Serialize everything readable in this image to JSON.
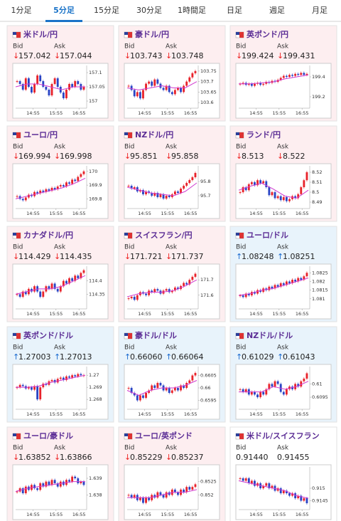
{
  "tabs": [
    "1分足",
    "5分足",
    "15分足",
    "30分足",
    "1時間足",
    "日足",
    "週足",
    "月足"
  ],
  "active_tab": 1,
  "time_labels": [
    "14:55",
    "15:55",
    "16:55"
  ],
  "candle_up_color": "#e8232b",
  "candle_down_color": "#2a44c4",
  "ma_color": "#d03ad0",
  "cards": [
    {
      "pair": "米ドル/円",
      "background": "#fdeef0",
      "bid_label": "Bid",
      "ask_label": "Ask",
      "bid_arrow": "↓",
      "bid": "157.042",
      "ask_arrow": "↓",
      "ask": "157.044",
      "ylim": [
        156.98,
        157.12
      ],
      "yticks": [
        157.1,
        157.05,
        157
      ],
      "closes": [
        157.07,
        157.06,
        157.04,
        157.08,
        157.05,
        157.03,
        157.06,
        157.09,
        157.07,
        157.05,
        157.04,
        157.02,
        157.06,
        157.08,
        157.05,
        157.03,
        157.01,
        157.04,
        157.06,
        157.05,
        157.07,
        157.06,
        157.04,
        157.05
      ],
      "ma": [
        157.05,
        157.06,
        157.06,
        157.05,
        157.04,
        157.05,
        157.05
      ]
    },
    {
      "pair": "豪ドル/円",
      "background": "#fdeef0",
      "bid_label": "Bid",
      "ask_label": "Ask",
      "bid_arrow": "↓",
      "bid": "103.743",
      "ask_arrow": "↓",
      "ask": "103.748",
      "ylim": [
        103.58,
        103.77
      ],
      "yticks": [
        103.75,
        103.7,
        103.65,
        103.6
      ],
      "closes": [
        103.68,
        103.66,
        103.63,
        103.65,
        103.62,
        103.66,
        103.69,
        103.7,
        103.68,
        103.71,
        103.69,
        103.67,
        103.66,
        103.68,
        103.65,
        103.64,
        103.66,
        103.67,
        103.65,
        103.68,
        103.7,
        103.72,
        103.74,
        103.75
      ],
      "ma": [
        103.67,
        103.66,
        103.67,
        103.68,
        103.67,
        103.67,
        103.7
      ]
    },
    {
      "pair": "英ポンド/円",
      "background": "#fdeef0",
      "bid_label": "Bid",
      "ask_label": "Ask",
      "bid_arrow": "↓",
      "bid": "199.424",
      "ask_arrow": "↓",
      "ask": "199.431",
      "ylim": [
        199.1,
        199.5
      ],
      "yticks": [
        199.4,
        199.2
      ],
      "closes": [
        199.33,
        199.34,
        199.32,
        199.33,
        199.31,
        199.33,
        199.34,
        199.32,
        199.33,
        199.35,
        199.34,
        199.36,
        199.35,
        199.37,
        199.39,
        199.41,
        199.4,
        199.42,
        199.41,
        199.43,
        199.42,
        199.44,
        199.42,
        199.43
      ],
      "ma": [
        199.33,
        199.33,
        199.34,
        199.35,
        199.38,
        199.4,
        199.42
      ]
    },
    {
      "pair": "ユーロ/円",
      "background": "#fdeef0",
      "bid_label": "Bid",
      "ask_label": "Ask",
      "bid_arrow": "↓",
      "bid": "169.994",
      "ask_arrow": "↓",
      "ask": "169.998",
      "ylim": [
        169.74,
        170.03
      ],
      "yticks": [
        170,
        169.9,
        169.8
      ],
      "closes": [
        169.82,
        169.8,
        169.79,
        169.81,
        169.83,
        169.82,
        169.85,
        169.84,
        169.86,
        169.85,
        169.87,
        169.86,
        169.88,
        169.87,
        169.89,
        169.9,
        169.89,
        169.92,
        169.91,
        169.94,
        169.93,
        169.96,
        169.98,
        170
      ],
      "ma": [
        169.8,
        169.82,
        169.84,
        169.86,
        169.88,
        169.91,
        169.95
      ]
    },
    {
      "pair": "NZドル/円",
      "background": "#fdeef0",
      "bid_label": "Bid",
      "ask_label": "Ask",
      "bid_arrow": "↓",
      "bid": "95.851",
      "ask_arrow": "↓",
      "ask": "95.858",
      "ylim": [
        95.62,
        95.9
      ],
      "yticks": [
        95.8,
        95.7
      ],
      "closes": [
        95.77,
        95.75,
        95.76,
        95.73,
        95.74,
        95.71,
        95.73,
        95.72,
        95.7,
        95.72,
        95.69,
        95.71,
        95.68,
        95.7,
        95.69,
        95.71,
        95.73,
        95.72,
        95.75,
        95.77,
        95.79,
        95.81,
        95.83,
        95.86
      ],
      "ma": [
        95.76,
        95.74,
        95.72,
        95.71,
        95.7,
        95.73,
        95.79
      ]
    },
    {
      "pair": "ランド/円",
      "background": "#fdeef0",
      "bid_label": "Bid",
      "ask_label": "Ask",
      "bid_arrow": "↓",
      "bid": "8.513",
      "ask_arrow": "↓",
      "ask": "8.522",
      "ylim": [
        8.485,
        8.525
      ],
      "yticks": [
        8.52,
        8.51,
        8.5,
        8.49
      ],
      "closes": [
        8.5,
        8.505,
        8.502,
        8.508,
        8.51,
        8.507,
        8.512,
        8.509,
        8.511,
        8.505,
        8.497,
        8.5,
        8.494,
        8.496,
        8.492,
        8.495,
        8.491,
        8.493,
        8.496,
        8.494,
        8.498,
        8.505,
        8.512,
        8.52
      ],
      "ma": [
        8.502,
        8.506,
        8.509,
        8.503,
        8.496,
        8.494,
        8.502
      ]
    },
    {
      "pair": "カナダドル/円",
      "background": "#fdeef0",
      "bid_label": "Bid",
      "ask_label": "Ask",
      "bid_arrow": "↓",
      "bid": "114.429",
      "ask_arrow": "↓",
      "ask": "114.435",
      "ylim": [
        114.3,
        114.45
      ],
      "yticks": [
        114.4,
        114.35
      ],
      "closes": [
        114.35,
        114.34,
        114.36,
        114.35,
        114.37,
        114.36,
        114.38,
        114.36,
        114.34,
        114.36,
        114.38,
        114.37,
        114.39,
        114.37,
        114.36,
        114.38,
        114.4,
        114.39,
        114.41,
        114.4,
        114.42,
        114.41,
        114.43,
        114.44
      ],
      "ma": [
        114.35,
        114.36,
        114.37,
        114.37,
        114.38,
        114.4,
        114.42
      ]
    },
    {
      "pair": "スイスフラン/円",
      "background": "#fdeef0",
      "bid_label": "Bid",
      "ask_label": "Ask",
      "bid_arrow": "↓",
      "bid": "171.721",
      "ask_arrow": "↓",
      "ask": "171.737",
      "ylim": [
        171.52,
        171.78
      ],
      "yticks": [
        171.7,
        171.6
      ],
      "closes": [
        171.58,
        171.59,
        171.57,
        171.6,
        171.62,
        171.61,
        171.6,
        171.63,
        171.62,
        171.64,
        171.63,
        171.61,
        171.63,
        171.64,
        171.62,
        171.63,
        171.65,
        171.64,
        171.66,
        171.68,
        171.67,
        171.7,
        171.72,
        171.74
      ],
      "ma": [
        171.59,
        171.61,
        171.62,
        171.62,
        171.63,
        171.66,
        171.7
      ]
    },
    {
      "pair": "ユーロ/ドル",
      "background": "#e8f3fb",
      "bid_label": "Bid",
      "ask_label": "Ask",
      "bid_arrow": "↑",
      "bid": "1.08248",
      "ask_arrow": "↑",
      "ask": "1.08251",
      "ylim": [
        1.0805,
        1.0828
      ],
      "yticks": [
        1.0825,
        1.082,
        1.0815,
        1.081
      ],
      "closes": [
        1.0812,
        1.0811,
        1.0813,
        1.0812,
        1.0814,
        1.0813,
        1.0815,
        1.0814,
        1.0816,
        1.0815,
        1.0817,
        1.0816,
        1.0818,
        1.0817,
        1.0819,
        1.0818,
        1.082,
        1.0819,
        1.0821,
        1.082,
        1.0822,
        1.0821,
        1.0823,
        1.0825
      ],
      "ma": [
        1.0812,
        1.0813,
        1.0815,
        1.0816,
        1.0818,
        1.082,
        1.0822
      ]
    },
    {
      "pair": "英ポンド/ドル",
      "background": "#e8f3fb",
      "bid_label": "Bid",
      "ask_label": "Ask",
      "bid_arrow": "↑",
      "bid": "1.27003",
      "ask_arrow": "↑",
      "ask": "1.27013",
      "ylim": [
        1.2673,
        1.2706
      ],
      "yticks": [
        1.27,
        1.269,
        1.268
      ],
      "closes": [
        1.269,
        1.2692,
        1.2691,
        1.2689,
        1.269,
        1.2688,
        1.2691,
        1.268,
        1.269,
        1.2693,
        1.2692,
        1.2695,
        1.2696,
        1.2694,
        1.2697,
        1.2698,
        1.2696,
        1.2699,
        1.2698,
        1.27,
        1.2699,
        1.2701,
        1.27,
        1.27
      ],
      "ma": [
        1.269,
        1.269,
        1.2691,
        1.2694,
        1.2696,
        1.2698,
        1.27
      ]
    },
    {
      "pair": "豪ドル/ドル",
      "background": "#e8f3fb",
      "bid_label": "Bid",
      "ask_label": "Ask",
      "bid_arrow": "↑",
      "bid": "0.66060",
      "ask_arrow": "↑",
      "ask": "0.66064",
      "ylim": [
        0.6592,
        0.6608
      ],
      "yticks": [
        0.6605,
        0.66,
        0.6595
      ],
      "closes": [
        0.66,
        0.6598,
        0.6597,
        0.6595,
        0.6597,
        0.6596,
        0.6598,
        0.6599,
        0.6601,
        0.66,
        0.6602,
        0.6601,
        0.6599,
        0.66,
        0.6598,
        0.6599,
        0.66,
        0.6599,
        0.6601,
        0.66,
        0.6602,
        0.6603,
        0.6605,
        0.6606
      ],
      "ma": [
        0.6599,
        0.6597,
        0.6599,
        0.66,
        0.66,
        0.6601,
        0.6603
      ]
    },
    {
      "pair": "NZドル/ドル",
      "background": "#e8f3fb",
      "bid_label": "Bid",
      "ask_label": "Ask",
      "bid_arrow": "↑",
      "bid": "0.61029",
      "ask_arrow": "↑",
      "ask": "0.61043",
      "ylim": [
        0.6091,
        0.6106
      ],
      "yticks": [
        0.61,
        0.6095
      ],
      "closes": [
        0.6098,
        0.6097,
        0.6098,
        0.6096,
        0.6097,
        0.6096,
        0.6095,
        0.6097,
        0.6096,
        0.6098,
        0.61,
        0.6099,
        0.6101,
        0.61,
        0.6097,
        0.6096,
        0.6098,
        0.6099,
        0.6098,
        0.61,
        0.6099,
        0.6101,
        0.6102,
        0.6104
      ],
      "ma": [
        0.6097,
        0.6097,
        0.6097,
        0.6099,
        0.6098,
        0.6099,
        0.6101
      ]
    },
    {
      "pair": "ユーロ/豪ドル",
      "background": "#fdeef0",
      "bid_label": "Bid",
      "ask_label": "Ask",
      "bid_arrow": "↓",
      "bid": "1.63852",
      "ask_arrow": "↓",
      "ask": "1.63866",
      "ylim": [
        1.6372,
        1.6396
      ],
      "yticks": [
        1.639,
        1.638
      ],
      "closes": [
        1.6382,
        1.6384,
        1.6381,
        1.6385,
        1.6383,
        1.6386,
        1.6384,
        1.6383,
        1.6387,
        1.6385,
        1.6388,
        1.6386,
        1.6389,
        1.6387,
        1.6385,
        1.6388,
        1.6386,
        1.6389,
        1.6388,
        1.6391,
        1.639,
        1.6387,
        1.6388,
        1.6386
      ],
      "ma": [
        1.6382,
        1.6384,
        1.6385,
        1.6386,
        1.6387,
        1.6388,
        1.6388
      ]
    },
    {
      "pair": "ユーロ/英ポンド",
      "background": "#fdeef0",
      "bid_label": "Bid",
      "ask_label": "Ask",
      "bid_arrow": "↓",
      "bid": "0.85229",
      "ask_arrow": "↓",
      "ask": "0.85237",
      "ylim": [
        0.8515,
        0.853
      ],
      "yticks": [
        0.8525,
        0.852
      ],
      "closes": [
        0.852,
        0.8519,
        0.852,
        0.8518,
        0.8519,
        0.8517,
        0.8519,
        0.8518,
        0.852,
        0.8519,
        0.8521,
        0.852,
        0.8519,
        0.8521,
        0.852,
        0.8522,
        0.8521,
        0.852,
        0.8522,
        0.8521,
        0.8523,
        0.8522,
        0.8523,
        0.8524
      ],
      "ma": [
        0.8519,
        0.8519,
        0.8519,
        0.852,
        0.8521,
        0.8521,
        0.8522
      ]
    },
    {
      "pair": "米ドル/スイスフラン",
      "background": "#ffffff",
      "bid_label": "Bid",
      "ask_label": "Ask",
      "bid": "0.91440",
      "ask": "0.91455",
      "ylim": [
        0.9142,
        0.9158
      ],
      "yticks": [
        0.915,
        0.9145
      ],
      "closes": [
        0.9154,
        0.9153,
        0.9154,
        0.9152,
        0.9153,
        0.9151,
        0.9152,
        0.915,
        0.9151,
        0.9152,
        0.915,
        0.9151,
        0.9149,
        0.915,
        0.9148,
        0.9149,
        0.9148,
        0.9147,
        0.9148,
        0.9146,
        0.9147,
        0.9145,
        0.9146,
        0.9144
      ],
      "ma": [
        0.9153,
        0.9152,
        0.9151,
        0.915,
        0.9149,
        0.9147,
        0.9146
      ]
    }
  ]
}
